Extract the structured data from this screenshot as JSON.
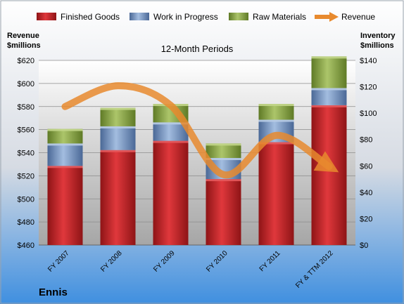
{
  "chart_data": {
    "type": "bar",
    "stacked": true,
    "title": "12-Month Periods",
    "company": "Ennis",
    "categories": [
      "FY 2007",
      "FY 2008",
      "FY 2009",
      "FY 2010",
      "FY 2011",
      "FY & TTM 2012"
    ],
    "series": [
      {
        "name": "Finished Goods",
        "axis": "right",
        "color": "#c0272d",
        "values": [
          60,
          72,
          79,
          50,
          78,
          106
        ]
      },
      {
        "name": "Work in Progress",
        "axis": "right",
        "color": "#6f90c2",
        "values": [
          17,
          18,
          14,
          16,
          17,
          13
        ]
      },
      {
        "name": "Raw Materials",
        "axis": "right",
        "color": "#8fa84a",
        "values": [
          11,
          14,
          14,
          11,
          12,
          24
        ]
      },
      {
        "name": "Revenue",
        "axis": "left",
        "type": "line",
        "color": "#e88a2e",
        "values": [
          580,
          598,
          581,
          521,
          555,
          528
        ]
      }
    ],
    "left_axis": {
      "label_line1": "Revenue",
      "label_line2": "$millions",
      "min": 460,
      "max": 620,
      "step": 20,
      "ticks": [
        "$460",
        "$480",
        "$500",
        "$520",
        "$540",
        "$560",
        "$580",
        "$600",
        "$620"
      ]
    },
    "right_axis": {
      "label_line1": "Inventory",
      "label_line2": "$millions",
      "min": 0,
      "max": 140,
      "step": 20,
      "ticks": [
        "$0",
        "$20",
        "$40",
        "$60",
        "$80",
        "$100",
        "$120",
        "$140"
      ]
    },
    "grid": true,
    "legend": "top"
  }
}
